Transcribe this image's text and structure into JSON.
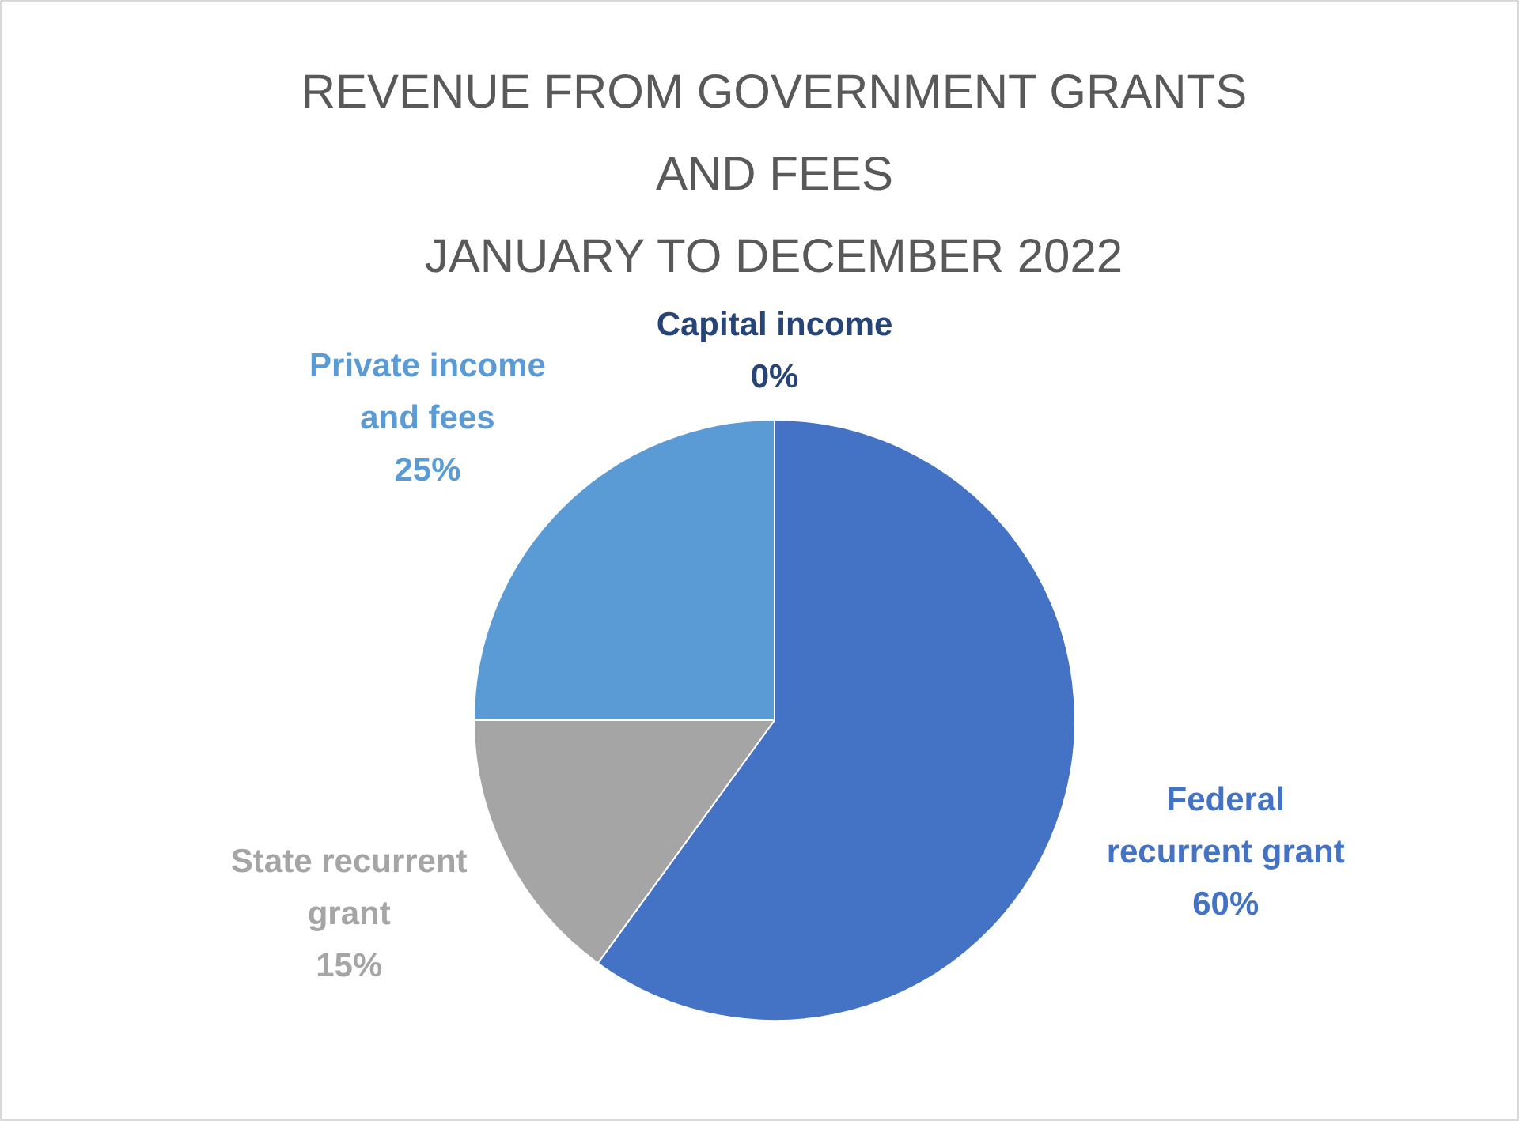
{
  "chart_data": {
    "type": "pie",
    "title": "REVENUE FROM GOVERNMENT GRANTS AND FEES",
    "subtitle": "JANUARY TO DECEMBER 2022",
    "categories": [
      "Federal recurrent grant",
      "State recurrent grant",
      "Private income and fees",
      "Capital income"
    ],
    "values": [
      60,
      15,
      25,
      0
    ],
    "colors": [
      "#4472c4",
      "#a5a5a5",
      "#5b9bd5",
      "#264478"
    ],
    "value_labels": [
      "60%",
      "15%",
      "25%",
      "0%"
    ]
  }
}
